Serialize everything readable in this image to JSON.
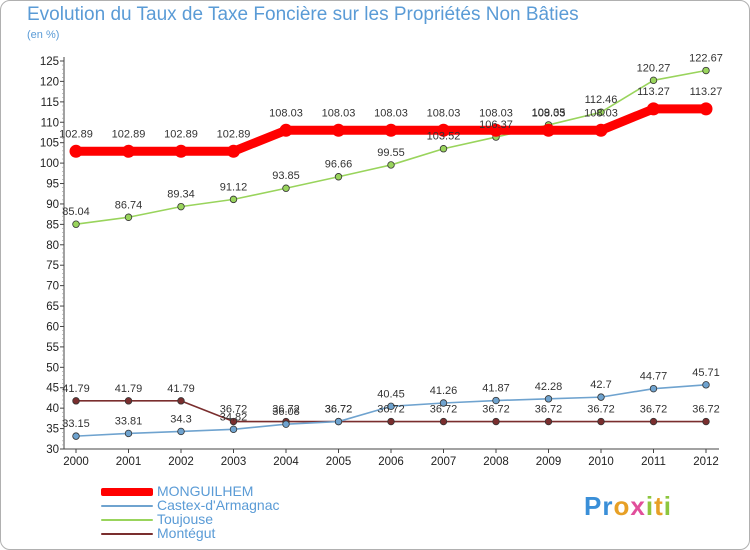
{
  "title": "Evolution du Taux de Taxe Foncière sur les Propriétés Non Bâties",
  "unit_label": "(en %)",
  "logo": {
    "text": "Proxiti"
  },
  "chart_data": {
    "type": "line",
    "title": "Evolution du Taux de Taxe Foncière sur les Propriétés Non Bâties",
    "ylabel": "(en %)",
    "xlabel": "",
    "ylim": [
      30,
      125
    ],
    "yticks": [
      30,
      35,
      40,
      45,
      50,
      55,
      60,
      65,
      70,
      75,
      80,
      85,
      90,
      95,
      100,
      105,
      110,
      115,
      120,
      125
    ],
    "grid": false,
    "legend_position": "bottom-left",
    "categories": [
      "2000",
      "2001",
      "2002",
      "2003",
      "2004",
      "2005",
      "2006",
      "2007",
      "2008",
      "2009",
      "2010",
      "2011",
      "2012"
    ],
    "series": [
      {
        "name": "MONGUILHEM",
        "color": "#ff0000",
        "values": [
          102.89,
          102.89,
          102.89,
          102.89,
          108.03,
          108.03,
          108.03,
          108.03,
          108.03,
          108.03,
          108.03,
          113.27,
          113.27
        ],
        "labels": [
          "102.89",
          "102.89",
          "102.89",
          "102.89",
          "108.03",
          "108.03",
          "108.03",
          "108.03",
          "108.03",
          "108.03",
          "108.03",
          "113.27",
          "113.27"
        ]
      },
      {
        "name": "Castex-d'Armagnac",
        "color": "#6fa3cf",
        "values": [
          33.15,
          33.81,
          34.3,
          34.82,
          36.08,
          36.72,
          40.45,
          41.26,
          41.87,
          42.28,
          42.7,
          44.77,
          45.71
        ],
        "labels": [
          "33.15",
          "33.81",
          "34.3",
          "34.82",
          "36.08",
          "36.72",
          "40.45",
          "41.26",
          "41.87",
          "42.28",
          "42.7",
          "44.77",
          "45.71"
        ]
      },
      {
        "name": "Toujouse",
        "color": "#99d45c",
        "values": [
          85.04,
          86.74,
          89.34,
          91.12,
          93.85,
          96.66,
          99.55,
          103.52,
          106.37,
          109.35,
          112.46,
          120.27,
          122.67
        ],
        "labels": [
          "85.04",
          "86.74",
          "89.34",
          "91.12",
          "93.85",
          "96.66",
          "99.55",
          "103.52",
          "106.37",
          "109.35",
          "112.46",
          "120.27",
          "122.67"
        ]
      },
      {
        "name": "Montégut",
        "color": "#7a2e2e",
        "values": [
          41.79,
          41.79,
          41.79,
          36.72,
          36.72,
          36.72,
          36.72,
          36.72,
          36.72,
          36.72,
          36.72,
          36.72,
          36.72
        ],
        "labels": [
          "41.79",
          "41.79",
          "41.79",
          "36.72",
          "36.72",
          "36.72",
          "36.72",
          "36.72",
          "36.72",
          "36.72",
          "36.72",
          "36.72",
          "36.72"
        ]
      }
    ]
  }
}
